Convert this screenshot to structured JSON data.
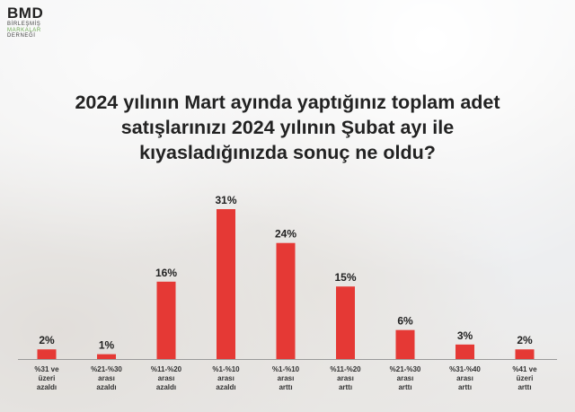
{
  "logo": {
    "main": "BMD",
    "lines": [
      "BİRLEŞMİŞ",
      "MARKALAR",
      "DERNEĞİ"
    ]
  },
  "colors": {
    "bar": "#e53935",
    "text": "#222222"
  },
  "chart_data": {
    "type": "bar",
    "title": "2024 yılının Mart ayında yaptığınız toplam adet satışlarınızı 2024 yılının Şubat ayı ile kıyasladığınızda sonuç ne oldu?",
    "title_lines": [
      "2024 yılının Mart ayında yaptığınız toplam adet",
      "satışlarınızı 2024 yılının Şubat ayı ile",
      "kıyasladığınızda sonuç ne oldu?"
    ],
    "categories": [
      [
        "%31 ve",
        "üzeri",
        "azaldı"
      ],
      [
        "%21-%30",
        "arası",
        "azaldı"
      ],
      [
        "%11-%20",
        "arası",
        "azaldı"
      ],
      [
        "%1-%10",
        "arası",
        "azaldı"
      ],
      [
        "%1-%10",
        "arası",
        "arttı"
      ],
      [
        "%11-%20",
        "arası",
        "arttı"
      ],
      [
        "%21-%30",
        "arası",
        "arttı"
      ],
      [
        "%31-%40",
        "arası",
        "arttı"
      ],
      [
        "%41 ve",
        "üzeri",
        "arttı"
      ]
    ],
    "values": [
      2,
      1,
      16,
      31,
      24,
      15,
      6,
      3,
      2
    ],
    "value_labels": [
      "2%",
      "1%",
      "16%",
      "31%",
      "24%",
      "15%",
      "6%",
      "3%",
      "2%"
    ],
    "unit": "%",
    "ylim": [
      0,
      31
    ],
    "grid": false,
    "legend": "none"
  }
}
